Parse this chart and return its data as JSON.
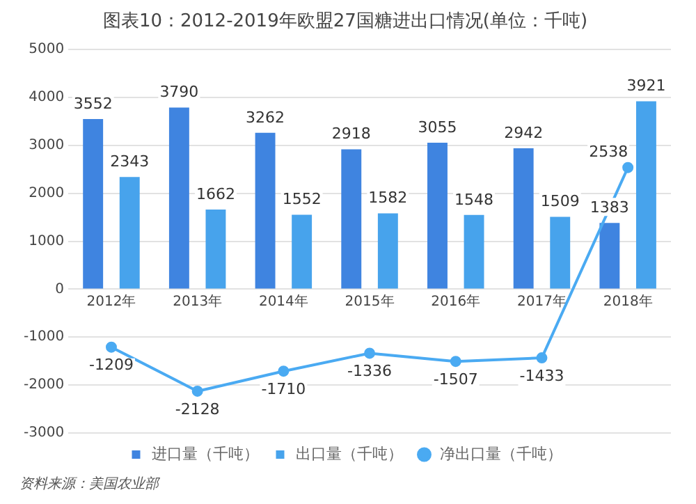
{
  "chart_data": {
    "type": "bar",
    "title": "图表10：2012-2019年欧盟27国糖进出口情况(单位：千吨)",
    "categories": [
      "2012年",
      "2013年",
      "2014年",
      "2015年",
      "2016年",
      "2017年",
      "2018年"
    ],
    "series": [
      {
        "name": "进口量（千吨）",
        "color": "#3f84e0",
        "values": [
          3552,
          3790,
          3262,
          2918,
          3055,
          2942,
          1383
        ]
      },
      {
        "name": "出口量（千吨）",
        "color": "#47a3ec",
        "values": [
          2343,
          1662,
          1552,
          1582,
          1548,
          1509,
          3921
        ]
      },
      {
        "name": "净出口量（千吨）",
        "type": "line",
        "marker": "circle",
        "color": "#4aaaf2",
        "values": [
          -1209,
          -2128,
          -1710,
          -1336,
          -1507,
          -1433,
          2538
        ]
      }
    ],
    "ylim": [
      -3000,
      5000
    ],
    "yticks": [
      -3000,
      -2000,
      -1000,
      0,
      1000,
      2000,
      3000,
      4000,
      5000
    ],
    "grid": "y",
    "legend": "bottom",
    "data_labels": true,
    "annotations": [
      "资料来源：美国农业部"
    ]
  }
}
